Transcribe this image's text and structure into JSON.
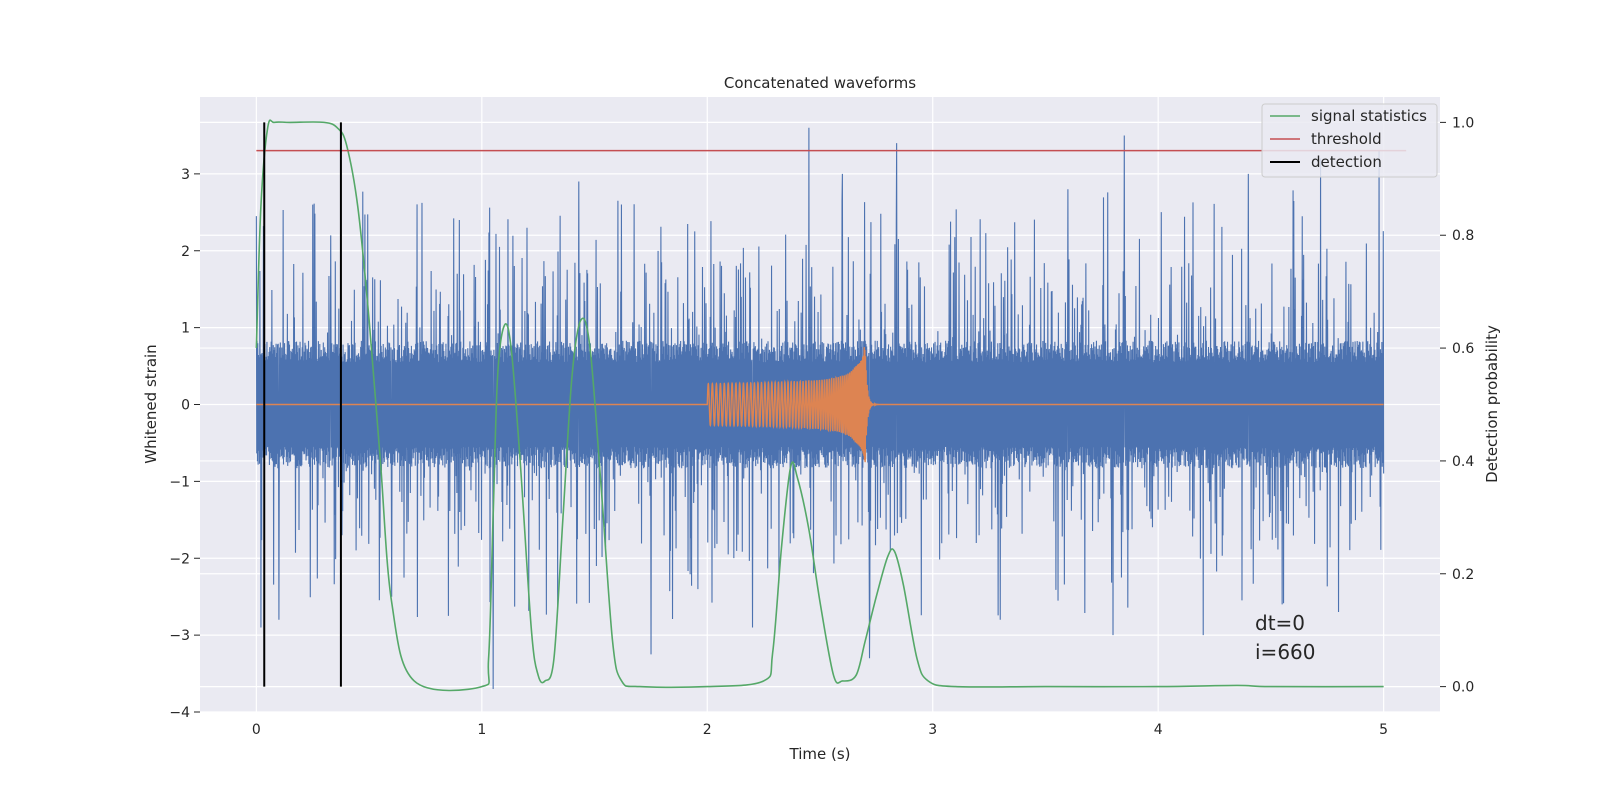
{
  "chart_data": {
    "type": "line",
    "title": "Concatenated waveforms",
    "xlabel": "Time (s)",
    "ylabel": "Whitened strain",
    "y2label": "Detection probability",
    "xlim": [
      -0.25,
      5.25
    ],
    "ylim": [
      -4.0,
      4.0
    ],
    "y2lim": [
      -0.045,
      1.045
    ],
    "xticks": [
      0,
      1,
      2,
      3,
      4,
      5
    ],
    "yticks": [
      -4,
      -3,
      -2,
      -1,
      0,
      1,
      2,
      3
    ],
    "y2ticks": [
      0.0,
      0.2,
      0.4,
      0.6,
      0.8,
      1.0
    ],
    "grid": true,
    "legend_position": "top-right",
    "legend": [
      "signal statistics",
      "threshold",
      "detection"
    ],
    "annotation": [
      "dt=0",
      "i=660"
    ],
    "colors": {
      "strain": "#4c72b0",
      "injection": "#dd8452",
      "statistics": "#55a868",
      "threshold": "#c44e52",
      "detection": "#000000",
      "background": "#eaeaf2",
      "grid": "#ffffff"
    },
    "series": [
      {
        "description_key": "strain",
        "axis": "left",
        "x_range": [
          0,
          5
        ],
        "envelope": 0.8,
        "peaks": [
          [
            0.0,
            2.45
          ],
          [
            0.02,
            -2.9
          ],
          [
            0.1,
            -2.8
          ],
          [
            0.25,
            2.6
          ],
          [
            0.33,
            2.2
          ],
          [
            0.38,
            2.6
          ],
          [
            0.38,
            -1.7
          ],
          [
            0.6,
            -2.5
          ],
          [
            0.9,
            2.4
          ],
          [
            1.05,
            -3.7
          ],
          [
            1.2,
            2.3
          ],
          [
            1.43,
            2.9
          ],
          [
            1.75,
            -3.25
          ],
          [
            2.2,
            -2.9
          ],
          [
            2.45,
            3.6
          ],
          [
            2.6,
            3.0
          ],
          [
            2.72,
            -3.3
          ],
          [
            2.84,
            3.4
          ],
          [
            3.3,
            -2.8
          ],
          [
            3.6,
            2.8
          ],
          [
            3.8,
            -3.0
          ],
          [
            3.85,
            3.5
          ],
          [
            4.2,
            -3.0
          ],
          [
            4.4,
            3.0
          ],
          [
            4.55,
            -2.6
          ],
          [
            4.72,
            3.2
          ],
          [
            4.8,
            -2.7
          ],
          [
            4.98,
            3.3
          ]
        ]
      },
      {
        "description_key": "injection",
        "axis": "left",
        "x_range": [
          2.0,
          2.85
        ],
        "merger_time": 2.7,
        "peak_amplitude": 0.75
      },
      {
        "name": "signal statistics",
        "axis": "right",
        "x": [
          0.0,
          0.02,
          0.05,
          0.08,
          0.15,
          0.3,
          0.36,
          0.4,
          0.45,
          0.5,
          0.55,
          0.6,
          0.7,
          1.0,
          1.03,
          1.05,
          1.07,
          1.1,
          1.13,
          1.17,
          1.22,
          1.25,
          1.28,
          1.32,
          1.36,
          1.4,
          1.44,
          1.48,
          1.53,
          1.58,
          1.62,
          1.7,
          2.0,
          2.25,
          2.29,
          2.33,
          2.37,
          2.4,
          2.45,
          2.5,
          2.56,
          2.6,
          2.66,
          2.7,
          2.75,
          2.8,
          2.83,
          2.87,
          2.93,
          2.98,
          3.1,
          3.5,
          4.0,
          4.35,
          4.5,
          5.0
        ],
        "y": [
          0.6,
          0.85,
          0.99,
          1.0,
          1.0,
          1.0,
          0.99,
          0.96,
          0.85,
          0.65,
          0.4,
          0.15,
          0.01,
          0.0,
          0.05,
          0.3,
          0.55,
          0.64,
          0.6,
          0.4,
          0.1,
          0.02,
          0.01,
          0.05,
          0.3,
          0.55,
          0.65,
          0.6,
          0.35,
          0.08,
          0.01,
          0.0,
          0.0,
          0.01,
          0.06,
          0.25,
          0.39,
          0.37,
          0.28,
          0.15,
          0.02,
          0.01,
          0.02,
          0.08,
          0.16,
          0.23,
          0.24,
          0.18,
          0.05,
          0.01,
          0.0,
          0.0,
          0.0,
          0.002,
          0.0,
          0.0
        ]
      },
      {
        "name": "threshold",
        "axis": "right",
        "x": [
          0.0,
          5.1
        ],
        "y": [
          0.95,
          0.95
        ]
      },
      {
        "name": "detection",
        "axis": "right",
        "x_positions": [
          0.035,
          0.375
        ],
        "y_range": [
          0.0,
          1.0
        ]
      }
    ]
  }
}
